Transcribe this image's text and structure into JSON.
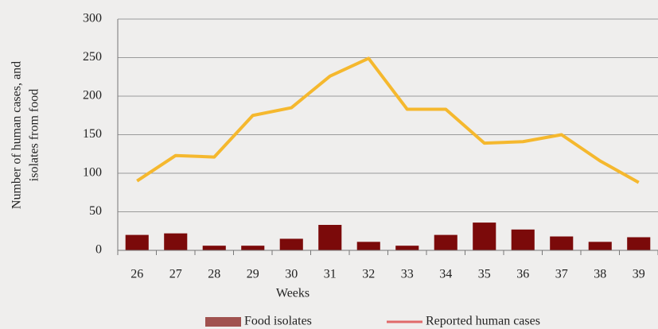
{
  "chart_data": {
    "type": "bar",
    "x_label": "Weeks",
    "y_label": [
      "Number of human cases, and",
      "isolates from food"
    ],
    "categories": [
      "26",
      "27",
      "28",
      "29",
      "30",
      "31",
      "32",
      "33",
      "34",
      "35",
      "36",
      "37",
      "38",
      "39"
    ],
    "series": [
      {
        "name": "Food isolates",
        "mark": "bar",
        "color": "#7b0a0a",
        "legend_color": "#a0524f",
        "values": [
          20,
          22,
          6,
          6,
          15,
          33,
          11,
          6,
          20,
          36,
          27,
          18,
          11,
          17
        ]
      },
      {
        "name": "Reported human cases",
        "mark": "line",
        "color": "#f5b82e",
        "legend_color": "#e06a6a",
        "values": [
          90,
          123,
          121,
          175,
          185,
          226,
          249,
          183,
          183,
          139,
          141,
          150,
          116,
          88
        ]
      }
    ],
    "ylim": [
      0,
      300
    ],
    "yticks": [
      0,
      50,
      100,
      150,
      200,
      250,
      300
    ],
    "grid": true
  }
}
